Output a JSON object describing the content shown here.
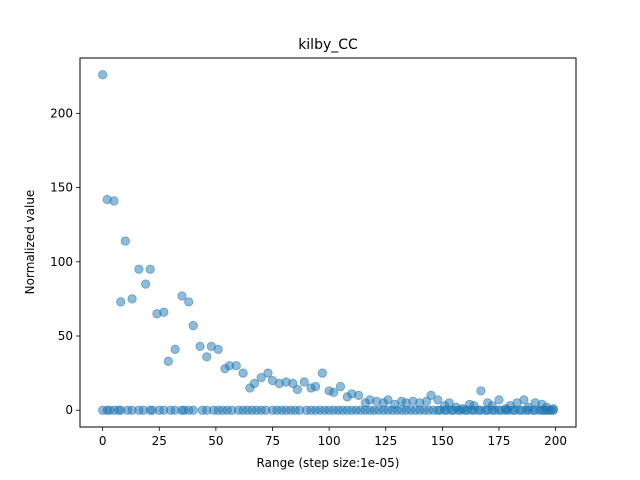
{
  "chart_data": {
    "type": "scatter",
    "title": "kilby_CC",
    "xlabel": "Range (step size:1e-05)",
    "ylabel": "Normalized value",
    "xlim": [
      -10,
      209
    ],
    "ylim": [
      -11.3,
      237.3
    ],
    "xticks": [
      0,
      25,
      50,
      75,
      100,
      125,
      150,
      175,
      200
    ],
    "yticks": [
      0,
      50,
      100,
      150,
      200
    ],
    "grid": false,
    "marker_color": "#1f77b4",
    "marker_alpha": 0.5,
    "points": [
      [
        0,
        226
      ],
      [
        2,
        142
      ],
      [
        5,
        141
      ],
      [
        8,
        73
      ],
      [
        10,
        114
      ],
      [
        13,
        75
      ],
      [
        16,
        95
      ],
      [
        19,
        85
      ],
      [
        21,
        95
      ],
      [
        24,
        65
      ],
      [
        27,
        66
      ],
      [
        29,
        33
      ],
      [
        32,
        41
      ],
      [
        35,
        77
      ],
      [
        38,
        73
      ],
      [
        40,
        57
      ],
      [
        43,
        43
      ],
      [
        46,
        36
      ],
      [
        48,
        43
      ],
      [
        51,
        41
      ],
      [
        54,
        28
      ],
      [
        56,
        30
      ],
      [
        59,
        30
      ],
      [
        62,
        25
      ],
      [
        65,
        15
      ],
      [
        67,
        18
      ],
      [
        70,
        22
      ],
      [
        73,
        25
      ],
      [
        75,
        20
      ],
      [
        78,
        18
      ],
      [
        81,
        19
      ],
      [
        84,
        18
      ],
      [
        86,
        14
      ],
      [
        89,
        19
      ],
      [
        92,
        15
      ],
      [
        94,
        16
      ],
      [
        97,
        25
      ],
      [
        100,
        13
      ],
      [
        102,
        12
      ],
      [
        105,
        16
      ],
      [
        108,
        9
      ],
      [
        110,
        11
      ],
      [
        113,
        10
      ],
      [
        116,
        5
      ],
      [
        118,
        7
      ],
      [
        121,
        6
      ],
      [
        124,
        5
      ],
      [
        126,
        7
      ],
      [
        129,
        4
      ],
      [
        132,
        6
      ],
      [
        134,
        5
      ],
      [
        137,
        6
      ],
      [
        140,
        5
      ],
      [
        143,
        6
      ],
      [
        145,
        10
      ],
      [
        148,
        7
      ],
      [
        151,
        3
      ],
      [
        153,
        5
      ],
      [
        156,
        2
      ],
      [
        159,
        1
      ],
      [
        162,
        4
      ],
      [
        164,
        3
      ],
      [
        167,
        13
      ],
      [
        170,
        5
      ],
      [
        172,
        3
      ],
      [
        175,
        7
      ],
      [
        178,
        1
      ],
      [
        180,
        3
      ],
      [
        183,
        5
      ],
      [
        186,
        7
      ],
      [
        188,
        2
      ],
      [
        191,
        5
      ],
      [
        194,
        4
      ],
      [
        196,
        2
      ],
      [
        199,
        1
      ]
    ],
    "zero_x": [
      0,
      2,
      3,
      5,
      7,
      8,
      11,
      13,
      16,
      18,
      21,
      22,
      25,
      27,
      30,
      32,
      35,
      36,
      38,
      40,
      44,
      46,
      49,
      51,
      53,
      55,
      57,
      60,
      62,
      64,
      66,
      68,
      70,
      72,
      75,
      77,
      79,
      81,
      83,
      85,
      87,
      90,
      92,
      94,
      96,
      98,
      100,
      102,
      104,
      106,
      108,
      110,
      112,
      114,
      116,
      118,
      120,
      122,
      124,
      126,
      128,
      130,
      132,
      134,
      136,
      138,
      140,
      142,
      144,
      146,
      148,
      149,
      151,
      152,
      154,
      155,
      157,
      158,
      160,
      161,
      163,
      164,
      166,
      167,
      169,
      170,
      172,
      173,
      175,
      176,
      178,
      179,
      181,
      182,
      184,
      185,
      187,
      188,
      190,
      191,
      193,
      194,
      195,
      196,
      197,
      198,
      199
    ]
  }
}
